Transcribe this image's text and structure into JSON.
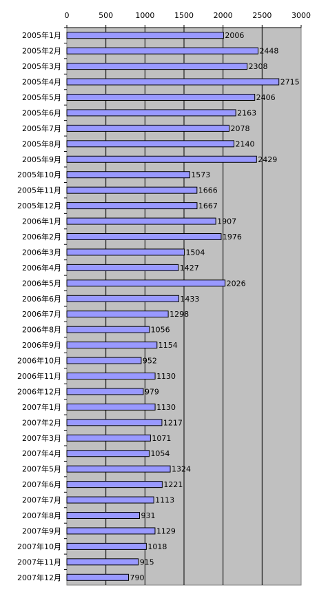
{
  "chart_data": {
    "type": "bar",
    "orientation": "horizontal",
    "title": "",
    "xlabel": "",
    "ylabel": "",
    "xlim": [
      0,
      3000
    ],
    "x_ticks": [
      0,
      500,
      1000,
      1500,
      2000,
      2500,
      3000
    ],
    "x_axis_position": "top",
    "grid": true,
    "data_labels": true,
    "plot_background": "#c0c0c0",
    "bar_color": "#9999ff",
    "categories": [
      "2005年1月",
      "2005年2月",
      "2005年3月",
      "2005年4月",
      "2005年5月",
      "2005年6月",
      "2005年7月",
      "2005年8月",
      "2005年9月",
      "2005年10月",
      "2005年11月",
      "2005年12月",
      "2006年1月",
      "2006年2月",
      "2006年3月",
      "2006年4月",
      "2006年5月",
      "2006年6月",
      "2006年7月",
      "2006年8月",
      "2006年9月",
      "2006年10月",
      "2006年11月",
      "2006年12月",
      "2007年1月",
      "2007年2月",
      "2007年3月",
      "2007年4月",
      "2007年5月",
      "2007年6月",
      "2007年7月",
      "2007年8月",
      "2007年9月",
      "2007年10月",
      "2007年11月",
      "2007年12月"
    ],
    "values": [
      2006,
      2448,
      2308,
      2715,
      2406,
      2163,
      2078,
      2140,
      2429,
      1573,
      1666,
      1667,
      1907,
      1976,
      1504,
      1427,
      2026,
      1433,
      1298,
      1056,
      1154,
      952,
      1130,
      979,
      1130,
      1217,
      1071,
      1054,
      1324,
      1221,
      1113,
      931,
      1129,
      1018,
      915,
      790
    ]
  }
}
